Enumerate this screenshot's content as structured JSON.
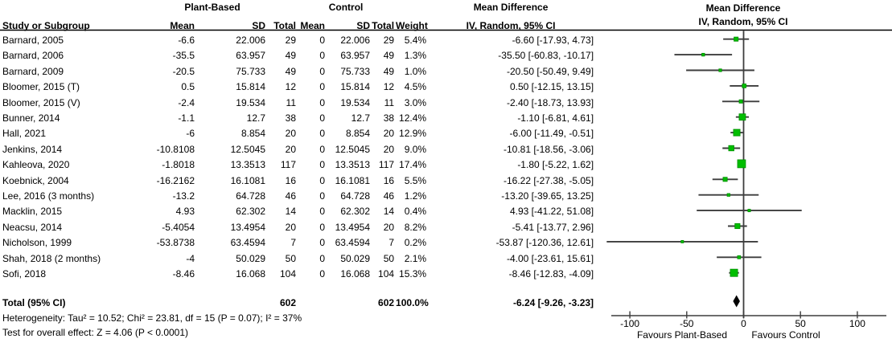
{
  "table": {
    "group_left": "Plant-Based",
    "group_right": "Control",
    "col_study": "Study or Subgroup",
    "col_mean": "Mean",
    "col_sd": "SD",
    "col_total": "Total",
    "col_weight": "Weight",
    "md_header_line1": "Mean Difference",
    "md_header_line2": "IV, Random, 95% CI"
  },
  "footnotes": {
    "heterogeneity": "Heterogeneity: Tau² = 10.52; Chi² = 23.81, df = 15 (P = 0.07); I² = 37%",
    "overall_effect": "Test for overall effect: Z = 4.06 (P < 0.0001)"
  },
  "colors": {
    "marker": "#00BE00",
    "marker_border": "#008F00",
    "line": "#3D3D3D",
    "diamond": "#000000",
    "separator": "#000000"
  },
  "chart_data": {
    "type": "scatter",
    "subtype": "forest-plot",
    "title": "Mean Difference",
    "method": "IV, Random, 95% CI",
    "x_axis_range": [
      -115,
      125
    ],
    "x_ticks": [
      {
        "value": -100,
        "label": "-100"
      },
      {
        "value": -50,
        "label": "-50"
      },
      {
        "value": 0,
        "label": "0"
      },
      {
        "value": 50,
        "label": "50"
      },
      {
        "value": 100,
        "label": "100"
      }
    ],
    "favours_left": "Favours Plant-Based",
    "favours_right": "Favours Control",
    "studies": [
      {
        "label": "Barnard, 2005",
        "e_mean": "-6.6",
        "e_sd": "22.006",
        "e_total": "29",
        "c_mean": "0",
        "c_sd": "22.006",
        "c_total": "29",
        "weight": "5.4%",
        "ci_text": "-6.60 [-17.93, 4.73]",
        "estimate": -6.6,
        "ci_low": -17.93,
        "ci_high": 4.73,
        "weight_pct": 5.4
      },
      {
        "label": "Barnard, 2006",
        "e_mean": "-35.5",
        "e_sd": "63.957",
        "e_total": "49",
        "c_mean": "0",
        "c_sd": "63.957",
        "c_total": "49",
        "weight": "1.3%",
        "ci_text": "-35.50 [-60.83, -10.17]",
        "estimate": -35.5,
        "ci_low": -60.83,
        "ci_high": -10.17,
        "weight_pct": 1.3
      },
      {
        "label": "Barnard, 2009",
        "e_mean": "-20.5",
        "e_sd": "75.733",
        "e_total": "49",
        "c_mean": "0",
        "c_sd": "75.733",
        "c_total": "49",
        "weight": "1.0%",
        "ci_text": "-20.50 [-50.49, 9.49]",
        "estimate": -20.5,
        "ci_low": -50.49,
        "ci_high": 9.49,
        "weight_pct": 1.0
      },
      {
        "label": "Bloomer, 2015 (T)",
        "e_mean": "0.5",
        "e_sd": "15.814",
        "e_total": "12",
        "c_mean": "0",
        "c_sd": "15.814",
        "c_total": "12",
        "weight": "4.5%",
        "ci_text": "0.50 [-12.15, 13.15]",
        "estimate": 0.5,
        "ci_low": -12.15,
        "ci_high": 13.15,
        "weight_pct": 4.5
      },
      {
        "label": "Bloomer, 2015 (V)",
        "e_mean": "-2.4",
        "e_sd": "19.534",
        "e_total": "11",
        "c_mean": "0",
        "c_sd": "19.534",
        "c_total": "11",
        "weight": "3.0%",
        "ci_text": "-2.40 [-18.73, 13.93]",
        "estimate": -2.4,
        "ci_low": -18.73,
        "ci_high": 13.93,
        "weight_pct": 3.0
      },
      {
        "label": "Bunner, 2014",
        "e_mean": "-1.1",
        "e_sd": "12.7",
        "e_total": "38",
        "c_mean": "0",
        "c_sd": "12.7",
        "c_total": "38",
        "weight": "12.4%",
        "ci_text": "-1.10 [-6.81, 4.61]",
        "estimate": -1.1,
        "ci_low": -6.81,
        "ci_high": 4.61,
        "weight_pct": 12.4
      },
      {
        "label": "Hall, 2021",
        "e_mean": "-6",
        "e_sd": "8.854",
        "e_total": "20",
        "c_mean": "0",
        "c_sd": "8.854",
        "c_total": "20",
        "weight": "12.9%",
        "ci_text": "-6.00 [-11.49, -0.51]",
        "estimate": -6.0,
        "ci_low": -11.49,
        "ci_high": -0.51,
        "weight_pct": 12.9
      },
      {
        "label": "Jenkins, 2014",
        "e_mean": "-10.8108",
        "e_sd": "12.5045",
        "e_total": "20",
        "c_mean": "0",
        "c_sd": "12.5045",
        "c_total": "20",
        "weight": "9.0%",
        "ci_text": "-10.81 [-18.56, -3.06]",
        "estimate": -10.81,
        "ci_low": -18.56,
        "ci_high": -3.06,
        "weight_pct": 9.0
      },
      {
        "label": "Kahleova, 2020",
        "e_mean": "-1.8018",
        "e_sd": "13.3513",
        "e_total": "117",
        "c_mean": "0",
        "c_sd": "13.3513",
        "c_total": "117",
        "weight": "17.4%",
        "ci_text": "-1.80 [-5.22, 1.62]",
        "estimate": -1.8,
        "ci_low": -5.22,
        "ci_high": 1.62,
        "weight_pct": 17.4
      },
      {
        "label": "Koebnick, 2004",
        "e_mean": "-16.2162",
        "e_sd": "16.1081",
        "e_total": "16",
        "c_mean": "0",
        "c_sd": "16.1081",
        "c_total": "16",
        "weight": "5.5%",
        "ci_text": "-16.22 [-27.38, -5.05]",
        "estimate": -16.22,
        "ci_low": -27.38,
        "ci_high": -5.05,
        "weight_pct": 5.5
      },
      {
        "label": "Lee, 2016 (3 months)",
        "e_mean": "-13.2",
        "e_sd": "64.728",
        "e_total": "46",
        "c_mean": "0",
        "c_sd": "64.728",
        "c_total": "46",
        "weight": "1.2%",
        "ci_text": "-13.20 [-39.65, 13.25]",
        "estimate": -13.2,
        "ci_low": -39.65,
        "ci_high": 13.25,
        "weight_pct": 1.2
      },
      {
        "label": "Macklin, 2015",
        "e_mean": "4.93",
        "e_sd": "62.302",
        "e_total": "14",
        "c_mean": "0",
        "c_sd": "62.302",
        "c_total": "14",
        "weight": "0.4%",
        "ci_text": "4.93 [-41.22, 51.08]",
        "estimate": 4.93,
        "ci_low": -41.22,
        "ci_high": 51.08,
        "weight_pct": 0.4
      },
      {
        "label": "Neacsu, 2014",
        "e_mean": "-5.4054",
        "e_sd": "13.4954",
        "e_total": "20",
        "c_mean": "0",
        "c_sd": "13.4954",
        "c_total": "20",
        "weight": "8.2%",
        "ci_text": "-5.41 [-13.77, 2.96]",
        "estimate": -5.41,
        "ci_low": -13.77,
        "ci_high": 2.96,
        "weight_pct": 8.2
      },
      {
        "label": "Nicholson, 1999",
        "e_mean": "-53.8738",
        "e_sd": "63.4594",
        "e_total": "7",
        "c_mean": "0",
        "c_sd": "63.4594",
        "c_total": "7",
        "weight": "0.2%",
        "ci_text": "-53.87 [-120.36, 12.61]",
        "estimate": -53.87,
        "ci_low": -120.36,
        "ci_high": 12.61,
        "weight_pct": 0.2
      },
      {
        "label": "Shah, 2018 (2 months)",
        "e_mean": "-4",
        "e_sd": "50.029",
        "e_total": "50",
        "c_mean": "0",
        "c_sd": "50.029",
        "c_total": "50",
        "weight": "2.1%",
        "ci_text": "-4.00 [-23.61, 15.61]",
        "estimate": -4.0,
        "ci_low": -23.61,
        "ci_high": 15.61,
        "weight_pct": 2.1
      },
      {
        "label": "Sofi, 2018",
        "e_mean": "-8.46",
        "e_sd": "16.068",
        "e_total": "104",
        "c_mean": "0",
        "c_sd": "16.068",
        "c_total": "104",
        "weight": "15.3%",
        "ci_text": "-8.46 [-12.83, -4.09]",
        "estimate": -8.46,
        "ci_low": -12.83,
        "ci_high": -4.09,
        "weight_pct": 15.3
      }
    ],
    "total": {
      "label": "Total (95% CI)",
      "e_total": "602",
      "c_total": "602",
      "weight": "100.0%",
      "ci_text": "-6.24 [-9.26, -3.23]",
      "estimate": -6.24,
      "ci_low": -9.26,
      "ci_high": -3.23
    }
  }
}
